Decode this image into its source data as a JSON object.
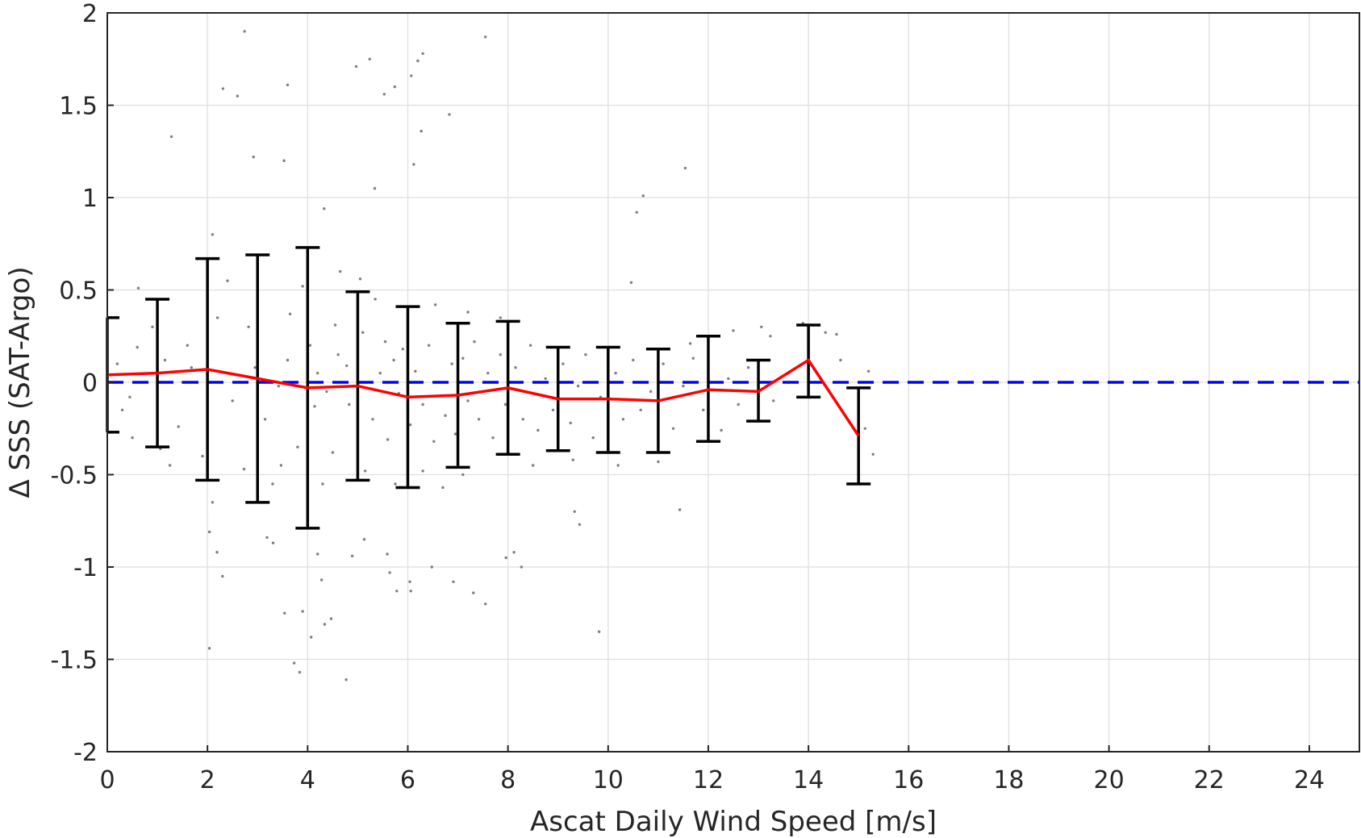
{
  "chart_data": {
    "type": "scatter",
    "title": "",
    "xlabel": "Ascat Daily Wind Speed [m/s]",
    "ylabel": "Δ SSS (SAT-Argo)",
    "xlim": [
      0,
      25
    ],
    "ylim": [
      -2,
      2
    ],
    "xticks": [
      0,
      2,
      4,
      6,
      8,
      10,
      12,
      14,
      16,
      18,
      20,
      22,
      24
    ],
    "yticks": [
      -2,
      -1.5,
      -1,
      -0.5,
      0,
      0.5,
      1,
      1.5,
      2
    ],
    "xtick_labels": [
      "0",
      "2",
      "4",
      "6",
      "8",
      "10",
      "12",
      "14",
      "16",
      "18",
      "20",
      "22",
      "24"
    ],
    "ytick_labels": [
      "-2",
      "-1.5",
      "-1",
      "-0.5",
      "0",
      "0.5",
      "1",
      "1.5",
      "2"
    ],
    "grid": true,
    "reference_line": {
      "y": 0,
      "color": "#0000ff",
      "style": "dashed"
    },
    "scatter_color": "#7f7f7f",
    "mean_line_color": "#ff0000",
    "errorbar_color": "#000000",
    "binned_stats": {
      "x": [
        0,
        1,
        2,
        3,
        4,
        5,
        6,
        7,
        8,
        9,
        10,
        11,
        12,
        13,
        14,
        15
      ],
      "mean": [
        0.04,
        0.05,
        0.07,
        0.02,
        -0.03,
        -0.02,
        -0.08,
        -0.07,
        -0.03,
        -0.09,
        -0.09,
        -0.1,
        -0.04,
        -0.05,
        0.12,
        -0.29
      ],
      "upper": [
        0.35,
        0.45,
        0.67,
        0.69,
        0.73,
        0.49,
        0.41,
        0.32,
        0.33,
        0.19,
        0.19,
        0.18,
        0.25,
        0.12,
        0.31,
        -0.03
      ],
      "lower": [
        -0.27,
        -0.35,
        -0.53,
        -0.65,
        -0.79,
        -0.53,
        -0.57,
        -0.46,
        -0.39,
        -0.37,
        -0.38,
        -0.38,
        -0.32,
        -0.21,
        -0.08,
        -0.55
      ]
    },
    "scatter_points": [
      [
        2.74,
        1.9
      ],
      [
        7.55,
        1.87
      ],
      [
        6.3,
        1.78
      ],
      [
        6.2,
        1.74
      ],
      [
        5.24,
        1.75
      ],
      [
        6.07,
        1.66
      ],
      [
        4.97,
        1.71
      ],
      [
        5.74,
        1.6
      ],
      [
        2.31,
        1.59
      ],
      [
        2.6,
        1.55
      ],
      [
        3.6,
        1.61
      ],
      [
        5.53,
        1.56
      ],
      [
        6.83,
        1.45
      ],
      [
        1.28,
        1.33
      ],
      [
        6.27,
        1.36
      ],
      [
        2.92,
        1.22
      ],
      [
        3.53,
        1.2
      ],
      [
        6.12,
        1.18
      ],
      [
        11.54,
        1.16
      ],
      [
        5.34,
        1.05
      ],
      [
        10.7,
        1.01
      ],
      [
        10.57,
        0.92
      ],
      [
        4.33,
        0.94
      ],
      [
        2.1,
        0.8
      ],
      [
        10.46,
        0.54
      ],
      [
        3.19,
        -0.84
      ],
      [
        3.31,
        -0.87
      ],
      [
        2.19,
        -0.92
      ],
      [
        2.04,
        -0.81
      ],
      [
        5.13,
        -0.85
      ],
      [
        5.59,
        -0.93
      ],
      [
        4.89,
        -0.94
      ],
      [
        4.2,
        -0.93
      ],
      [
        7.96,
        -0.95
      ],
      [
        8.12,
        -0.92
      ],
      [
        5.64,
        -1.03
      ],
      [
        8.27,
        -1.0
      ],
      [
        6.48,
        -1.0
      ],
      [
        2.3,
        -1.05
      ],
      [
        4.28,
        -1.07
      ],
      [
        6.04,
        -1.08
      ],
      [
        6.06,
        -1.13
      ],
      [
        7.31,
        -1.14
      ],
      [
        7.55,
        -1.2
      ],
      [
        5.78,
        -1.13
      ],
      [
        6.91,
        -1.08
      ],
      [
        3.54,
        -1.25
      ],
      [
        3.9,
        -1.24
      ],
      [
        4.34,
        -1.31
      ],
      [
        4.47,
        -1.28
      ],
      [
        4.07,
        -1.38
      ],
      [
        3.73,
        -1.52
      ],
      [
        3.84,
        -1.57
      ],
      [
        4.77,
        -1.61
      ],
      [
        2.04,
        -1.44
      ],
      [
        9.82,
        -1.35
      ],
      [
        11.43,
        -0.69
      ],
      [
        9.43,
        -0.77
      ],
      [
        9.33,
        -0.7
      ],
      [
        13.89,
        0.32
      ],
      [
        14.34,
        0.27
      ],
      [
        14.56,
        0.26
      ],
      [
        15.13,
        -0.25
      ],
      [
        15.29,
        -0.39
      ],
      [
        15.2,
        0.06
      ],
      [
        14.64,
        0.12
      ],
      [
        13.24,
        0.25
      ],
      [
        13.06,
        0.3
      ],
      [
        12.5,
        0.28
      ],
      [
        11.64,
        0.21
      ],
      [
        12.26,
        -0.26
      ],
      [
        0.62,
        0.51
      ],
      [
        1.06,
        -0.36
      ],
      [
        1.25,
        -0.45
      ],
      [
        0.45,
        -0.08
      ],
      [
        0.6,
        0.19
      ],
      [
        1.6,
        0.2
      ],
      [
        1.68,
        0.08
      ],
      [
        1.42,
        -0.24
      ],
      [
        2.4,
        0.55
      ],
      [
        2.82,
        0.3
      ],
      [
        2.73,
        -0.47
      ],
      [
        3.0,
        0.26
      ],
      [
        3.65,
        0.37
      ],
      [
        3.47,
        -0.45
      ],
      [
        3.6,
        0.12
      ],
      [
        4.05,
        0.2
      ],
      [
        4.55,
        0.31
      ],
      [
        4.5,
        -0.38
      ],
      [
        4.14,
        -0.13
      ],
      [
        4.2,
        0.05
      ],
      [
        4.38,
        -0.05
      ],
      [
        4.61,
        0.15
      ],
      [
        4.78,
        0.09
      ],
      [
        4.83,
        -0.12
      ],
      [
        5.1,
        0.27
      ],
      [
        5.3,
        -0.2
      ],
      [
        5.45,
        0.05
      ],
      [
        5.55,
        0.22
      ],
      [
        5.6,
        -0.31
      ],
      [
        5.72,
        0.12
      ],
      [
        5.82,
        -0.06
      ],
      [
        5.9,
        0.18
      ],
      [
        6.05,
        -0.23
      ],
      [
        6.15,
        0.06
      ],
      [
        6.3,
        -0.12
      ],
      [
        6.42,
        0.2
      ],
      [
        6.52,
        -0.32
      ],
      [
        6.61,
        0.0
      ],
      [
        6.75,
        -0.18
      ],
      [
        6.88,
        0.1
      ],
      [
        6.95,
        -0.28
      ],
      [
        7.1,
        0.13
      ],
      [
        7.2,
        -0.1
      ],
      [
        7.33,
        0.22
      ],
      [
        7.42,
        -0.2
      ],
      [
        7.6,
        0.05
      ],
      [
        7.7,
        -0.3
      ],
      [
        7.85,
        0.15
      ],
      [
        7.95,
        -0.12
      ],
      [
        8.15,
        0.08
      ],
      [
        8.3,
        -0.2
      ],
      [
        8.45,
        0.2
      ],
      [
        8.6,
        -0.26
      ],
      [
        8.75,
        0.02
      ],
      [
        8.9,
        -0.15
      ],
      [
        9.1,
        0.1
      ],
      [
        9.25,
        -0.22
      ],
      [
        9.4,
        -0.02
      ],
      [
        9.55,
        0.15
      ],
      [
        9.7,
        -0.3
      ],
      [
        9.85,
        -0.08
      ],
      [
        10.15,
        0.05
      ],
      [
        10.3,
        -0.2
      ],
      [
        10.5,
        0.12
      ],
      [
        10.65,
        -0.15
      ],
      [
        10.85,
        -0.05
      ],
      [
        11.1,
        0.1
      ],
      [
        11.3,
        -0.25
      ],
      [
        11.5,
        -0.02
      ],
      [
        11.7,
        0.13
      ],
      [
        11.9,
        -0.15
      ],
      [
        12.4,
        0.02
      ],
      [
        12.6,
        -0.12
      ],
      [
        12.8,
        0.08
      ],
      [
        13.3,
        -0.1
      ],
      [
        13.6,
        0.05
      ],
      [
        3.9,
        0.52
      ],
      [
        4.65,
        0.6
      ],
      [
        5.05,
        0.56
      ],
      [
        5.35,
        0.45
      ],
      [
        6.55,
        0.42
      ],
      [
        7.2,
        0.38
      ],
      [
        7.85,
        0.35
      ],
      [
        5.15,
        -0.48
      ],
      [
        5.75,
        -0.55
      ],
      [
        6.3,
        -0.48
      ],
      [
        7.1,
        -0.5
      ],
      [
        8.5,
        -0.45
      ],
      [
        9.3,
        -0.42
      ],
      [
        10.2,
        -0.45
      ],
      [
        11.0,
        -0.43
      ],
      [
        4.0,
        -0.6
      ],
      [
        4.3,
        -0.55
      ],
      [
        6.7,
        -0.57
      ],
      [
        3.3,
        -0.55
      ],
      [
        2.1,
        -0.65
      ],
      [
        0.5,
        -0.3
      ],
      [
        0.9,
        0.3
      ],
      [
        1.9,
        -0.4
      ],
      [
        2.2,
        0.35
      ],
      [
        3.15,
        -0.2
      ],
      [
        3.8,
        -0.35
      ],
      [
        2.5,
        -0.1
      ],
      [
        2.95,
        0.08
      ],
      [
        3.42,
        -0.02
      ],
      [
        1.5,
        0.0
      ],
      [
        1.15,
        0.12
      ],
      [
        0.2,
        0.1
      ],
      [
        0.3,
        -0.15
      ]
    ]
  }
}
